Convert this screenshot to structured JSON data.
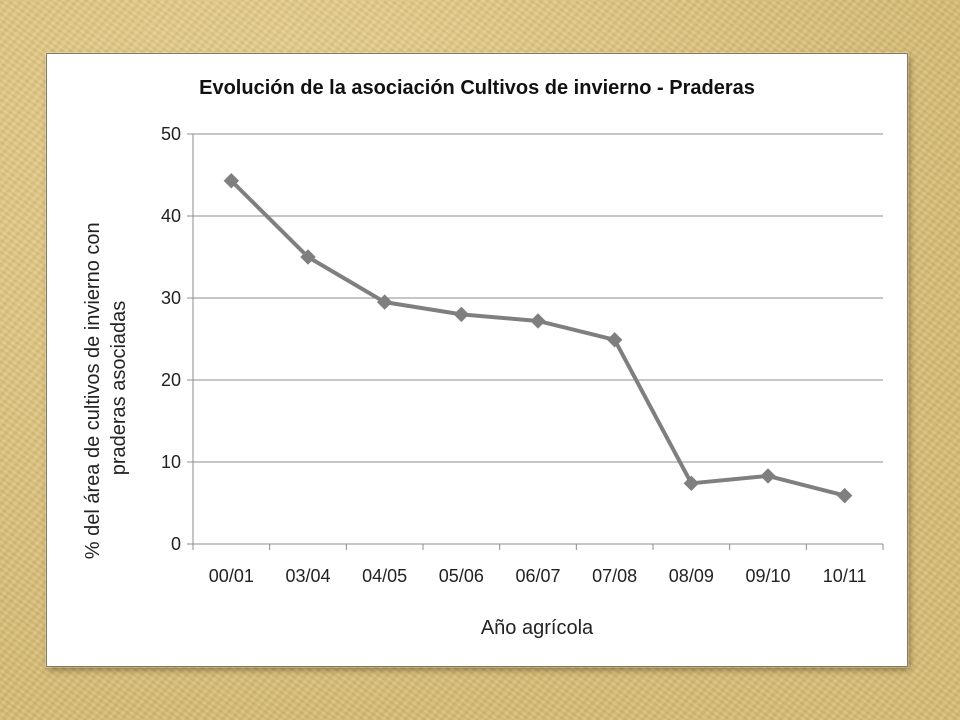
{
  "chart_data": {
    "type": "line",
    "title": "Evolución de la asociación Cultivos de invierno - Praderas",
    "xlabel": "Año agrícola",
    "ylabel_lines": [
      "% del área de cultivos de invierno con",
      "praderas asociadas"
    ],
    "categories": [
      "00/01",
      "03/04",
      "04/05",
      "05/06",
      "06/07",
      "07/08",
      "08/09",
      "09/10",
      "10/11"
    ],
    "series": [
      {
        "values": [
          44.3,
          35.0,
          29.5,
          28.0,
          27.2,
          24.9,
          7.4,
          8.3,
          5.9
        ],
        "color": "#7f7f7f",
        "marker": "diamond"
      }
    ],
    "ylim": [
      0,
      50
    ],
    "yticks": [
      0,
      10,
      20,
      30,
      40,
      50
    ],
    "grid": true,
    "legend": "none"
  }
}
